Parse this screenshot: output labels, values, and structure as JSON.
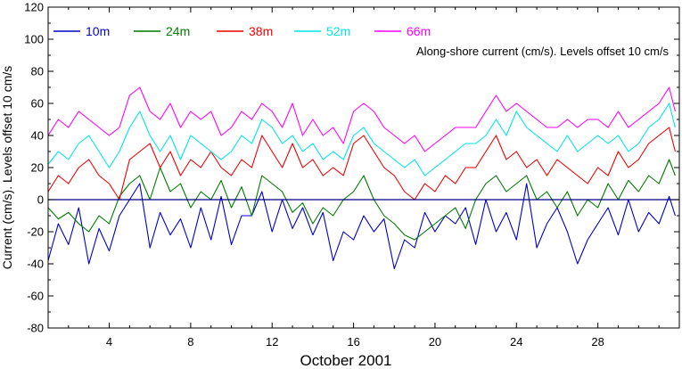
{
  "chart_data": {
    "type": "line",
    "title": "",
    "xlabel": "October 2001",
    "ylabel": "Current (cm/s). Levels offset 10 cm/s",
    "annotation": "Along-shore current (cm/s). Levels offset 10 cm/s",
    "xlim": [
      1,
      32
    ],
    "ylim": [
      -80,
      120
    ],
    "x_ticks": [
      4,
      8,
      12,
      16,
      20,
      24,
      28
    ],
    "x_tick_labels": [
      "4",
      "8",
      "12",
      "16",
      "20",
      "24",
      "28"
    ],
    "y_ticks": [
      -80,
      -60,
      -40,
      -20,
      0,
      20,
      40,
      60,
      80,
      100,
      120
    ],
    "y_tick_labels": [
      "-80",
      "-60",
      "-40",
      "-20",
      "0",
      "20",
      "40",
      "60",
      "80",
      "100",
      "120"
    ],
    "zero_line": true,
    "grid": false,
    "legend": "top, horizontal",
    "x": [
      1.0,
      1.5,
      2.0,
      2.5,
      3.0,
      3.5,
      4.0,
      4.5,
      5.0,
      5.5,
      6.0,
      6.5,
      7.0,
      7.5,
      8.0,
      8.5,
      9.0,
      9.5,
      10.0,
      10.5,
      11.0,
      11.5,
      12.0,
      12.5,
      13.0,
      13.5,
      14.0,
      14.5,
      15.0,
      15.5,
      16.0,
      16.5,
      17.0,
      17.5,
      18.0,
      18.5,
      19.0,
      19.5,
      20.0,
      20.5,
      21.0,
      21.5,
      22.0,
      22.5,
      23.0,
      23.5,
      24.0,
      24.5,
      25.0,
      25.5,
      26.0,
      26.5,
      27.0,
      27.5,
      28.0,
      28.5,
      29.0,
      29.5,
      30.0,
      30.5,
      31.0,
      31.5,
      31.8
    ],
    "series": [
      {
        "name": "10m",
        "color": "#0000cc",
        "values": [
          -38,
          -15,
          -28,
          -5,
          -40,
          -18,
          -32,
          -10,
          0,
          10,
          -30,
          -8,
          -22,
          -12,
          -30,
          -5,
          -25,
          2,
          -28,
          -10,
          -10,
          5,
          -20,
          0,
          -18,
          -5,
          -22,
          -8,
          -38,
          -20,
          -25,
          -10,
          -20,
          -12,
          -43,
          -25,
          -30,
          -8,
          -20,
          -10,
          -15,
          -5,
          -28,
          0,
          -20,
          -8,
          -25,
          10,
          -30,
          -15,
          -5,
          -20,
          -40,
          -25,
          -15,
          -5,
          -22,
          0,
          -20,
          -8,
          -15,
          2,
          -10
        ]
      },
      {
        "name": "24m",
        "color": "#007a00",
        "values": [
          -5,
          -12,
          -8,
          -15,
          -20,
          -10,
          -15,
          2,
          10,
          15,
          0,
          20,
          5,
          10,
          -5,
          5,
          0,
          12,
          -5,
          8,
          -10,
          15,
          10,
          5,
          -8,
          -2,
          -15,
          -5,
          -10,
          0,
          5,
          15,
          0,
          -10,
          -15,
          -22,
          -25,
          -20,
          -15,
          -10,
          -5,
          -18,
          0,
          10,
          15,
          5,
          10,
          15,
          0,
          5,
          -5,
          5,
          -10,
          0,
          -5,
          10,
          0,
          12,
          5,
          15,
          10,
          25,
          15
        ]
      },
      {
        "name": "38m",
        "color": "#ee0000",
        "values": [
          5,
          15,
          10,
          20,
          25,
          15,
          10,
          0,
          25,
          30,
          35,
          20,
          30,
          15,
          25,
          20,
          30,
          20,
          15,
          25,
          20,
          40,
          30,
          20,
          35,
          20,
          25,
          15,
          20,
          15,
          35,
          40,
          30,
          20,
          15,
          5,
          0,
          10,
          5,
          15,
          10,
          20,
          20,
          30,
          40,
          25,
          30,
          20,
          25,
          15,
          25,
          20,
          15,
          10,
          20,
          15,
          30,
          20,
          25,
          35,
          40,
          45,
          30
        ]
      },
      {
        "name": "52m",
        "color": "#00e6e6",
        "values": [
          22,
          30,
          25,
          35,
          40,
          30,
          20,
          30,
          45,
          55,
          40,
          30,
          40,
          25,
          40,
          35,
          30,
          25,
          30,
          40,
          35,
          50,
          45,
          35,
          40,
          30,
          35,
          25,
          30,
          25,
          40,
          45,
          35,
          30,
          25,
          20,
          25,
          15,
          20,
          25,
          30,
          35,
          35,
          40,
          50,
          40,
          55,
          45,
          40,
          35,
          30,
          40,
          30,
          35,
          40,
          35,
          40,
          30,
          35,
          45,
          50,
          60,
          45
        ]
      },
      {
        "name": "66m",
        "color": "#ff00ff",
        "values": [
          40,
          50,
          45,
          55,
          50,
          45,
          40,
          45,
          65,
          70,
          55,
          50,
          60,
          45,
          55,
          50,
          55,
          40,
          45,
          55,
          50,
          60,
          55,
          45,
          60,
          40,
          50,
          40,
          45,
          35,
          55,
          60,
          55,
          45,
          40,
          35,
          40,
          30,
          35,
          40,
          45,
          45,
          45,
          55,
          65,
          55,
          60,
          55,
          50,
          45,
          45,
          50,
          45,
          50,
          50,
          45,
          55,
          45,
          50,
          55,
          60,
          70,
          55
        ]
      }
    ]
  }
}
